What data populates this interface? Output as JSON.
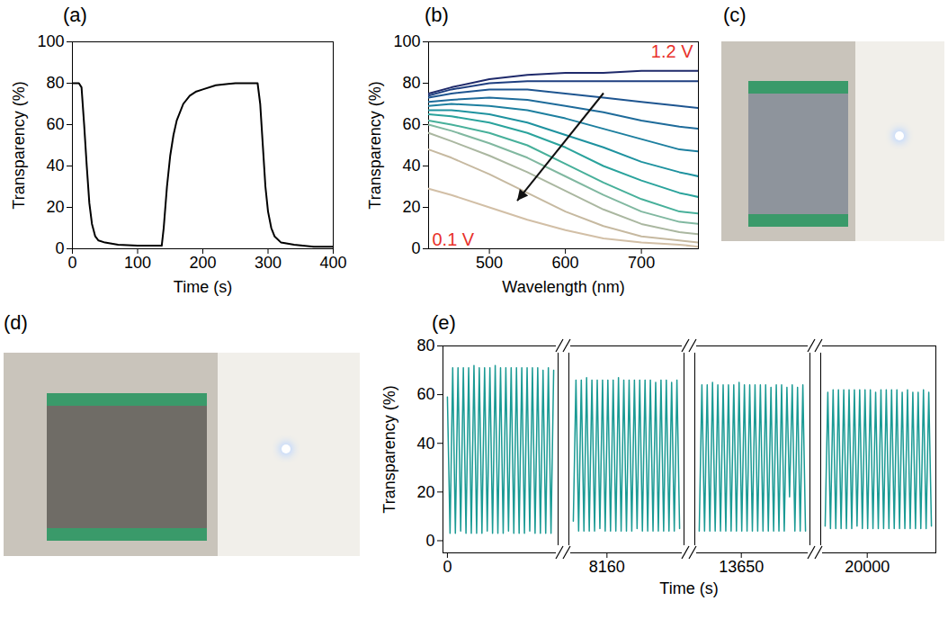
{
  "chart_data": [
    {
      "type": "line",
      "title": "(a)",
      "x_label": "Time (s)",
      "y_label": "Transparency (%)",
      "xlim": [
        0,
        400
      ],
      "xticks": [
        0,
        100,
        200,
        300,
        400
      ],
      "ylim": [
        0,
        100
      ],
      "yticks": [
        0,
        20,
        40,
        60,
        80,
        100
      ],
      "color": "#000000",
      "x": [
        0,
        10,
        14,
        18,
        22,
        26,
        30,
        35,
        40,
        50,
        70,
        100,
        137,
        140,
        145,
        150,
        155,
        160,
        170,
        180,
        190,
        200,
        220,
        250,
        284,
        288,
        292,
        296,
        300,
        305,
        310,
        320,
        340,
        370,
        400
      ],
      "values": [
        80,
        80,
        78,
        60,
        40,
        22,
        12,
        6,
        4,
        3,
        2,
        1.5,
        1.5,
        10,
        30,
        45,
        55,
        62,
        70,
        74,
        76,
        77,
        79,
        80,
        80,
        70,
        50,
        30,
        18,
        10,
        6,
        3,
        2,
        1,
        1
      ]
    },
    {
      "type": "line",
      "title": "(b)",
      "x_label": "Wavelength (nm)",
      "y_label": "Transparency (%)",
      "xlim": [
        420,
        775
      ],
      "xticks": [
        500,
        600,
        700
      ],
      "ylim": [
        0,
        100
      ],
      "yticks": [
        0,
        20,
        40,
        60,
        80,
        100
      ],
      "annotations": [
        {
          "text": "1.2 V",
          "color": "#e8312a"
        },
        {
          "text": "0.1 V",
          "color": "#e8312a"
        }
      ],
      "x": [
        420,
        450,
        500,
        550,
        600,
        650,
        700,
        750,
        775
      ],
      "series": [
        {
          "color": "#1f2a6b",
          "values": [
            75,
            78,
            82,
            84,
            85,
            85,
            86,
            86,
            86
          ]
        },
        {
          "color": "#1f3f80",
          "values": [
            74,
            77,
            80,
            81,
            81,
            81,
            81,
            81,
            81
          ]
        },
        {
          "color": "#1e5590",
          "values": [
            73,
            75,
            77,
            77,
            75,
            73,
            71,
            69,
            68
          ]
        },
        {
          "color": "#1e6b9a",
          "values": [
            71,
            72,
            73,
            72,
            69,
            66,
            62,
            59,
            58
          ]
        },
        {
          "color": "#1d7f9f",
          "values": [
            69,
            70,
            69,
            67,
            63,
            58,
            53,
            48,
            47
          ]
        },
        {
          "color": "#1e929f",
          "values": [
            67,
            67,
            65,
            61,
            55,
            49,
            42,
            37,
            35
          ]
        },
        {
          "color": "#2aa39c",
          "values": [
            65,
            64,
            61,
            56,
            49,
            40,
            33,
            27,
            25
          ]
        },
        {
          "color": "#47b09a",
          "values": [
            62,
            60,
            56,
            50,
            41,
            32,
            24,
            18,
            17
          ]
        },
        {
          "color": "#80b8a0",
          "values": [
            60,
            57,
            51,
            44,
            35,
            26,
            18,
            13,
            12
          ]
        },
        {
          "color": "#aab7a0",
          "values": [
            56,
            52,
            45,
            37,
            28,
            19,
            12,
            8,
            7
          ]
        },
        {
          "color": "#c6b9a0",
          "values": [
            48,
            44,
            36,
            27,
            18,
            11,
            6,
            4,
            3
          ]
        },
        {
          "color": "#d2bfa6",
          "values": [
            29,
            26,
            20,
            14,
            9,
            5,
            3,
            2,
            1
          ]
        }
      ]
    },
    {
      "type": "image",
      "title": "(c)"
    },
    {
      "type": "image",
      "title": "(d)"
    },
    {
      "type": "line",
      "title": "(e)",
      "x_label": "Time (s)",
      "y_label": "Transparency (%)",
      "ylim": [
        -5,
        80
      ],
      "yticks": [
        0,
        20,
        40,
        60,
        80
      ],
      "color": "#1a9a94",
      "segments": [
        {
          "xlim": [
            -100,
            2500
          ],
          "xticks": [
            0
          ],
          "x": [
            0,
            60,
            120,
            180,
            240,
            300,
            360,
            420,
            480,
            540,
            600,
            660,
            720,
            780,
            840,
            900,
            960,
            1020,
            1080,
            1140,
            1200,
            1260,
            1320,
            1380,
            1440,
            1500,
            1560,
            1620,
            1680,
            1740,
            1800,
            1860,
            1920,
            1980,
            2040,
            2100,
            2160,
            2220,
            2280,
            2340,
            2400
          ],
          "values": [
            59,
            3,
            71,
            3,
            71,
            4,
            71,
            3,
            71,
            3,
            72,
            3,
            71,
            3,
            71,
            4,
            71,
            3,
            72,
            3,
            71,
            3,
            71,
            4,
            71,
            3,
            71,
            3,
            71,
            3,
            71,
            4,
            71,
            3,
            71,
            3,
            70,
            3,
            71,
            3,
            70
          ]
        },
        {
          "xlim": [
            7300,
            9900
          ],
          "xticks": [
            8160
          ],
          "x": [
            7400,
            7460,
            7520,
            7580,
            7640,
            7700,
            7760,
            7820,
            7880,
            7940,
            8000,
            8060,
            8120,
            8180,
            8240,
            8300,
            8360,
            8420,
            8480,
            8540,
            8600,
            8660,
            8720,
            8780,
            8840,
            8900,
            8960,
            9020,
            9080,
            9140,
            9200,
            9260,
            9320,
            9380,
            9440,
            9500,
            9560,
            9620,
            9680,
            9740,
            9800
          ],
          "values": [
            8,
            66,
            4,
            66,
            4,
            67,
            4,
            66,
            4,
            66,
            5,
            66,
            4,
            66,
            4,
            66,
            4,
            67,
            4,
            66,
            4,
            66,
            4,
            66,
            5,
            66,
            4,
            66,
            4,
            66,
            4,
            65,
            4,
            66,
            4,
            66,
            4,
            65,
            4,
            66,
            5
          ]
        },
        {
          "xlim": [
            12600,
            15200
          ],
          "xticks": [
            13650
          ],
          "x": [
            12700,
            12760,
            12820,
            12880,
            12940,
            13000,
            13060,
            13120,
            13180,
            13240,
            13300,
            13360,
            13420,
            13480,
            13540,
            13600,
            13660,
            13720,
            13780,
            13840,
            13900,
            13960,
            14020,
            14080,
            14140,
            14200,
            14260,
            14320,
            14380,
            14440,
            14500,
            14560,
            14620,
            14680,
            14740,
            14800,
            14860,
            14920,
            14980,
            15040,
            15100
          ],
          "values": [
            4,
            64,
            4,
            64,
            4,
            65,
            4,
            64,
            4,
            64,
            4,
            64,
            4,
            64,
            4,
            65,
            4,
            64,
            4,
            64,
            4,
            64,
            4,
            64,
            4,
            64,
            4,
            63,
            4,
            64,
            4,
            64,
            4,
            63,
            18,
            64,
            4,
            63,
            4,
            64,
            4
          ]
        },
        {
          "xlim": [
            18950,
            21550
          ],
          "xticks": [
            20000
          ],
          "x": [
            19050,
            19110,
            19170,
            19230,
            19290,
            19350,
            19410,
            19470,
            19530,
            19590,
            19650,
            19710,
            19770,
            19830,
            19890,
            19950,
            20010,
            20070,
            20130,
            20190,
            20250,
            20310,
            20370,
            20430,
            20490,
            20550,
            20610,
            20670,
            20730,
            20790,
            20850,
            20910,
            20970,
            21030,
            21090,
            21150,
            21210,
            21270,
            21330,
            21390,
            21450
          ],
          "values": [
            6,
            61,
            5,
            62,
            5,
            62,
            5,
            62,
            5,
            62,
            5,
            62,
            6,
            62,
            5,
            62,
            5,
            62,
            5,
            61,
            5,
            62,
            5,
            62,
            5,
            62,
            5,
            62,
            5,
            61,
            5,
            62,
            5,
            61,
            5,
            61,
            5,
            62,
            5,
            61,
            6
          ]
        }
      ]
    }
  ]
}
